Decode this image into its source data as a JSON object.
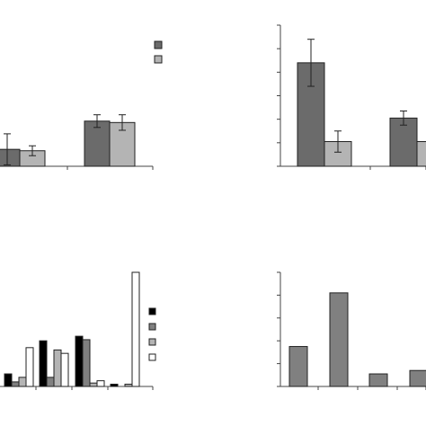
{
  "colors": {
    "dark_gray": "#6b6b6b",
    "light_gray": "#b4b4b4",
    "black": "#000000",
    "mid_gray": "#808080",
    "white": "#ffffff"
  },
  "chart_data": [
    {
      "id": "top-left",
      "type": "bar",
      "title": "",
      "ylim": [
        0,
        10
      ],
      "categories": [
        "",
        ""
      ],
      "series": [
        {
          "color": "dark_gray",
          "values": [
            1.2,
            3.2
          ],
          "errors": [
            1.1,
            0.45
          ]
        },
        {
          "color": "light_gray",
          "values": [
            1.1,
            3.1
          ],
          "errors": [
            0.35,
            0.55
          ]
        }
      ],
      "legend": {
        "position": "top-right",
        "entries": [
          "dark_gray",
          "light_gray"
        ]
      },
      "grid": false
    },
    {
      "id": "top-right",
      "type": "bar",
      "title": "",
      "ylim": [
        0,
        6
      ],
      "categories": [
        "",
        ""
      ],
      "series": [
        {
          "color": "dark_gray",
          "values": [
            4.4,
            2.05
          ],
          "errors": [
            1.0,
            0.3
          ]
        },
        {
          "color": "light_gray",
          "values": [
            1.05,
            1.05
          ],
          "errors": [
            0.45,
            0.0
          ]
        }
      ],
      "grid": false
    },
    {
      "id": "bottom-left",
      "type": "bar",
      "title": "",
      "ylim": [
        0,
        10
      ],
      "categories": [
        "",
        "",
        "",
        ""
      ],
      "series": [
        {
          "color": "black",
          "values": [
            1.1,
            4.0,
            4.4,
            0.2
          ]
        },
        {
          "color": "mid_gray",
          "values": [
            0.4,
            0.8,
            4.1,
            0.0
          ]
        },
        {
          "color": "light_gray",
          "values": [
            0.8,
            3.2,
            0.3,
            0.2
          ]
        },
        {
          "color": "white",
          "values": [
            3.4,
            2.9,
            0.5,
            10.0
          ]
        }
      ],
      "legend": {
        "position": "right",
        "entries": [
          "black",
          "mid_gray",
          "light_gray",
          "white"
        ]
      },
      "grid": false
    },
    {
      "id": "bottom-right",
      "type": "bar",
      "title": "",
      "ylim": [
        0,
        5
      ],
      "categories": [
        "",
        "",
        "",
        ""
      ],
      "series": [
        {
          "color": "mid_gray",
          "values": [
            1.75,
            4.1,
            0.55,
            0.7
          ]
        }
      ],
      "grid": false
    }
  ]
}
